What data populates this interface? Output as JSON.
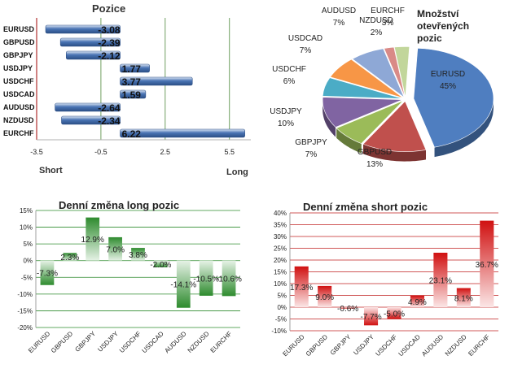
{
  "chart_data": [
    {
      "type": "bar",
      "orientation": "horizontal",
      "title": "Pozice",
      "categories": [
        "EURUSD",
        "GBPUSD",
        "GBPJPY",
        "USDJPY",
        "USDCHF",
        "USDCAD",
        "AUDUSD",
        "NZDUSD",
        "EURCHF"
      ],
      "values": [
        -3.08,
        -2.39,
        -2.12,
        1.77,
        3.77,
        1.59,
        -2.64,
        -2.34,
        6.22
      ],
      "value_labels": [
        "-3.08",
        "-2.39",
        "-2.12",
        "1.77",
        "3.77",
        "1.59",
        "-2.64",
        "-2.34",
        "6.22"
      ],
      "xlim": [
        -3.5,
        6.5
      ],
      "xticks": [
        -3.5,
        -0.5,
        2.5,
        5.5
      ],
      "xtick_labels": [
        "-3.5",
        "-0.5",
        "2.5",
        "5.5"
      ],
      "left_label": "Short",
      "right_label": "Long",
      "colors": {
        "bar": "#4a74b4",
        "bar_light": "#dce6f4",
        "baseline": "#b03030",
        "grid": "#70a060"
      }
    },
    {
      "type": "pie",
      "title": "Množství otevřených pozic",
      "title_lines": [
        "Množství",
        "otevřených",
        "pozic"
      ],
      "slices": [
        {
          "label": "EURUSD",
          "value": 45,
          "text": "45%",
          "color": "#4f7ec0"
        },
        {
          "label": "GBPUSD",
          "value": 13,
          "text": "13%",
          "color": "#c0504d"
        },
        {
          "label": "GBPJPY",
          "value": 7,
          "text": "7%",
          "color": "#9bbb59"
        },
        {
          "label": "USDJPY",
          "value": 10,
          "text": "10%",
          "color": "#8064a2"
        },
        {
          "label": "USDCHF",
          "value": 6,
          "text": "6%",
          "color": "#4bacc6"
        },
        {
          "label": "USDCAD",
          "value": 7,
          "text": "7%",
          "color": "#f79646"
        },
        {
          "label": "AUDUSD",
          "value": 7,
          "text": "7%",
          "color": "#8ea8d6"
        },
        {
          "label": "NZDUSD",
          "value": 2,
          "text": "2%",
          "color": "#d98a87"
        },
        {
          "label": "EURCHF",
          "value": 3,
          "text": "3%",
          "color": "#c2d69b"
        }
      ]
    },
    {
      "type": "bar",
      "title": "Denní změna long pozic",
      "categories": [
        "EURUSD",
        "GBPUSD",
        "GBPJPY",
        "USDJPY",
        "USDCHF",
        "USDCAD",
        "AUDUSD",
        "NZDUSD",
        "EURCHF"
      ],
      "values": [
        -7.3,
        2.3,
        12.9,
        7.0,
        3.8,
        -2.0,
        -14.1,
        -10.5,
        -10.6
      ],
      "value_labels": [
        "-7.3%",
        "2.3%",
        "12.9%",
        "7.0%",
        "3.8%",
        "-2.0%",
        "-14.1%",
        "-10.5%",
        "-10.6%"
      ],
      "ylim": [
        -20,
        15
      ],
      "yticks": [
        -20,
        -15,
        -10,
        -5,
        0,
        5,
        10,
        15
      ],
      "ytick_labels": [
        "-20%",
        "-15%",
        "-10%",
        "-5%",
        "0%",
        "5%",
        "10%",
        "15%"
      ],
      "colors": {
        "bar": "#2e8b2e",
        "bar_light": "#e6f2e6",
        "grid": "#2e8b2e"
      }
    },
    {
      "type": "bar",
      "title": "Denní změna short pozic",
      "categories": [
        "EURUSD",
        "GBPUSD",
        "GBPJPY",
        "USDJPY",
        "USDCHF",
        "USDCAD",
        "AUDUSD",
        "NZDUSD",
        "EURCHF"
      ],
      "values": [
        17.3,
        9.0,
        -0.6,
        -7.7,
        -5.0,
        4.9,
        23.1,
        8.1,
        36.7
      ],
      "value_labels": [
        "17.3%",
        "9.0%",
        "-0.6%",
        "-7.7%",
        "-5.0%",
        "4.9%",
        "23.1%",
        "8.1%",
        "36.7%"
      ],
      "ylim": [
        -10,
        40
      ],
      "yticks": [
        -10,
        -5,
        0,
        5,
        10,
        15,
        20,
        25,
        30,
        35,
        40
      ],
      "ytick_labels": [
        "-10%",
        "-5%",
        "0%",
        "5%",
        "10%",
        "15%",
        "20%",
        "25%",
        "30%",
        "35%",
        "40%"
      ],
      "colors": {
        "bar": "#d01010",
        "bar_light": "#fbe6e6",
        "grid": "#c02020"
      }
    }
  ]
}
